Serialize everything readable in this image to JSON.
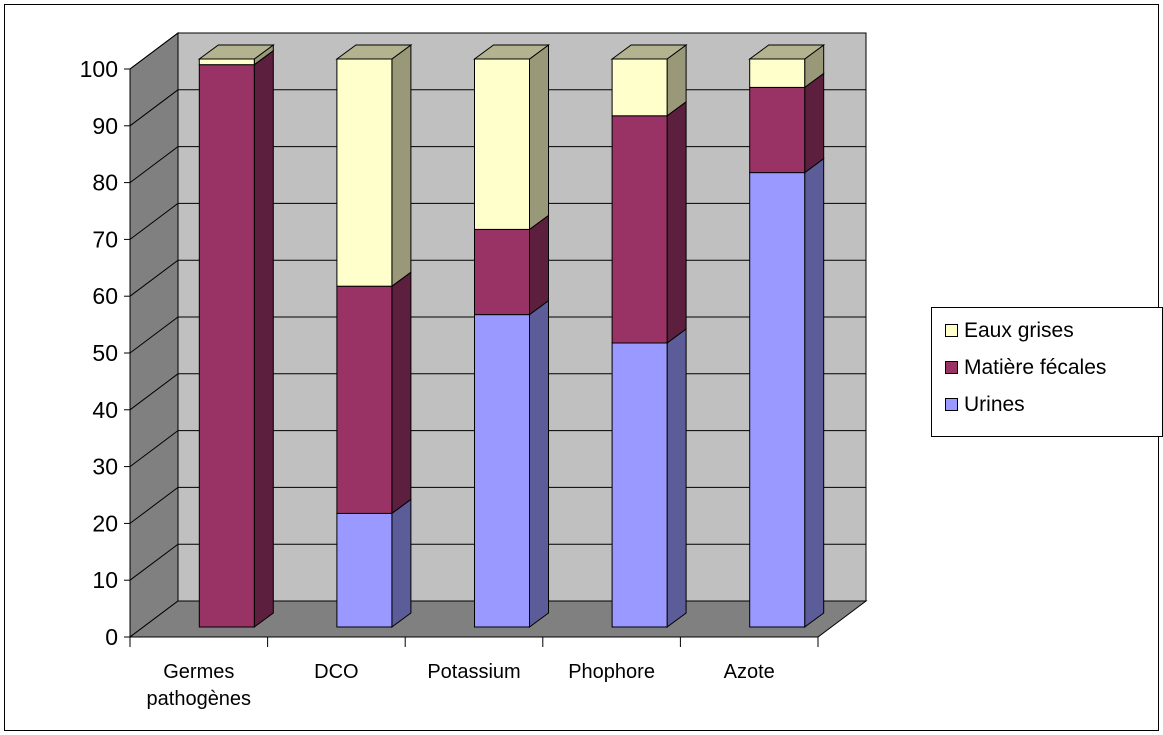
{
  "chart_data": {
    "type": "bar",
    "stacked": true,
    "three_d": true,
    "title": "",
    "xlabel": "",
    "ylabel": "",
    "ylim": [
      0,
      100
    ],
    "y_ticks": [
      "0",
      "10",
      "20",
      "30",
      "40",
      "50",
      "60",
      "70",
      "80",
      "90",
      "100"
    ],
    "grid": true,
    "legend_position": "right",
    "categories": [
      "Germes pathogènes",
      "DCO",
      "Potassium",
      "Phophore",
      "Azote"
    ],
    "category_lines": [
      [
        "Germes",
        "pathogènes"
      ],
      [
        "DCO"
      ],
      [
        "Potassium"
      ],
      [
        "Phophore"
      ],
      [
        "Azote"
      ]
    ],
    "series": [
      {
        "name": "Urines",
        "values": [
          0,
          20,
          55,
          50,
          80
        ],
        "color": "#9999ff"
      },
      {
        "name": "Matière fécales",
        "values": [
          99,
          40,
          15,
          40,
          15
        ],
        "color": "#993366"
      },
      {
        "name": "Eaux grises",
        "values": [
          1,
          40,
          30,
          10,
          5
        ],
        "color": "#ffffcc"
      }
    ],
    "legend_order": [
      "Eaux grises",
      "Matière fécales",
      "Urines"
    ],
    "colors": {
      "wall": "#c0c0c0",
      "side_wall": "#808080",
      "floor": "#808080"
    }
  }
}
